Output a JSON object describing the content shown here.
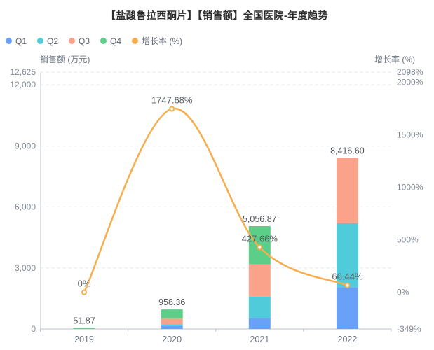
{
  "title": "【盐酸鲁拉西酮片】【销售额】全国医院-年度趋势",
  "left_axis_name": "销售额 (万元)",
  "right_axis_name": "增长率 (%)",
  "legend": {
    "items": [
      {
        "id": "q1",
        "label": "Q1",
        "color": "#6aa1f8"
      },
      {
        "id": "q2",
        "label": "Q2",
        "color": "#50cbda"
      },
      {
        "id": "q3",
        "label": "Q3",
        "color": "#fba28a"
      },
      {
        "id": "q4",
        "label": "Q4",
        "color": "#5bce87"
      },
      {
        "id": "growth",
        "label": "增长率 (%)",
        "color": "#f6ae4d"
      }
    ]
  },
  "colors": {
    "q1": "#6aa1f8",
    "q2": "#50cbda",
    "q3": "#fba28a",
    "q4": "#5bce87",
    "line": "#f6ae4d",
    "grid": "#e0e6f1",
    "axis_line": "#b9c0cc",
    "left_axis_line": "#dde2ec",
    "tick_text": "#808893",
    "x_label_text": "#6e7681",
    "total_label_text": "#4f5358",
    "pct_label_text": "#5b6066"
  },
  "chart_data": {
    "type": "bar",
    "variant": "stacked-bars-with-growth-line",
    "title": "【盐酸鲁拉西酮片】【销售额】全国医院-年度趋势",
    "categories": [
      "2019",
      "2020",
      "2021",
      "2022"
    ],
    "series": [
      {
        "name": "Q1",
        "type": "bar",
        "color": "#6aa1f8",
        "values": [
          0,
          160,
          540,
          2052
        ]
      },
      {
        "name": "Q2",
        "type": "bar",
        "color": "#50cbda",
        "values": [
          0,
          75,
          1045,
          3147
        ]
      },
      {
        "name": "Q3",
        "type": "bar",
        "color": "#fba28a",
        "values": [
          0,
          290,
          1590,
          3217.6
        ]
      },
      {
        "name": "Q4",
        "type": "bar",
        "color": "#5bce87",
        "values": [
          51.87,
          433.36,
          1881.87,
          0
        ]
      }
    ],
    "totals": {
      "values": [
        51.87,
        958.36,
        5056.87,
        8416.6
      ],
      "labels": [
        "51.87",
        "958.36",
        "5,056.87",
        "8,416.60"
      ]
    },
    "growth_line": {
      "name": "增长率 (%)",
      "type": "line",
      "smooth": true,
      "color": "#f6ae4d",
      "values": [
        0,
        1747.68,
        427.66,
        66.44
      ],
      "labels": [
        "0%",
        "1747.68%",
        "427.66%",
        "66.44%"
      ]
    },
    "left_axis": {
      "name": "销售额 (万元)",
      "min": 0,
      "max": 12625,
      "ticks": [
        {
          "v": 0,
          "label": "0"
        },
        {
          "v": 3000,
          "label": "3,000"
        },
        {
          "v": 6000,
          "label": "6,000"
        },
        {
          "v": 9000,
          "label": "9,000"
        },
        {
          "v": 12000,
          "label": "12,000"
        },
        {
          "v": 12625,
          "label": "12,625"
        }
      ]
    },
    "right_axis": {
      "name": "增长率 (%)",
      "min": -349,
      "max": 2098,
      "ticks": [
        {
          "v": -349,
          "label": "-349%"
        },
        {
          "v": 0,
          "label": "0%"
        },
        {
          "v": 500,
          "label": "500%"
        },
        {
          "v": 1000,
          "label": "1000%"
        },
        {
          "v": 1500,
          "label": "1500%"
        },
        {
          "v": 2000,
          "label": "2000%"
        },
        {
          "v": 2098,
          "label": "2098%"
        }
      ]
    },
    "grid": true,
    "grid_style": "dashed",
    "legend_position": "top-left"
  }
}
